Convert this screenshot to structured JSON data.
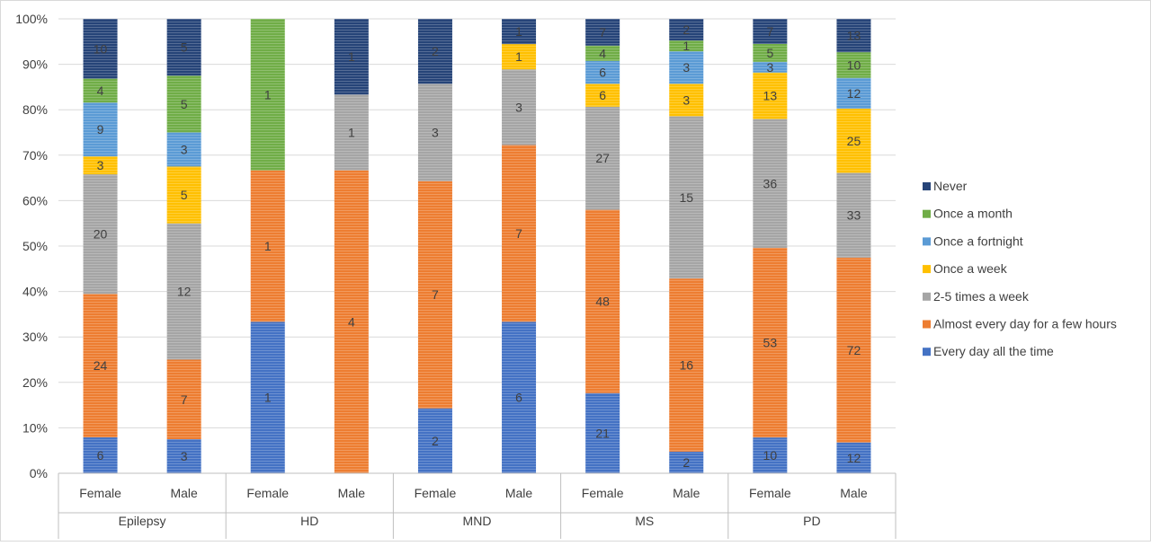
{
  "chart_data": {
    "type": "bar",
    "stacked": "percent",
    "title": "",
    "xlabel": "",
    "ylabel": "",
    "ylim": [
      0,
      100
    ],
    "y_ticks": [
      "0%",
      "10%",
      "20%",
      "30%",
      "40%",
      "50%",
      "60%",
      "70%",
      "80%",
      "90%",
      "100%"
    ],
    "grid": true,
    "legend_position": "right",
    "groups": [
      {
        "name": "Epilepsy",
        "categories": [
          "Female",
          "Male"
        ]
      },
      {
        "name": "HD",
        "categories": [
          "Female",
          "Male"
        ]
      },
      {
        "name": "MND",
        "categories": [
          "Female",
          "Male"
        ]
      },
      {
        "name": "MS",
        "categories": [
          "Female",
          "Male"
        ]
      },
      {
        "name": "PD",
        "categories": [
          "Female",
          "Male"
        ]
      }
    ],
    "series": [
      {
        "name": "Every day  all the time",
        "color": "#4472C4",
        "values": [
          6,
          3,
          1,
          0,
          2,
          6,
          21,
          2,
          10,
          12
        ]
      },
      {
        "name": "Almost every day for a few hours",
        "color": "#ED7D31",
        "values": [
          24,
          7,
          1,
          4,
          7,
          7,
          48,
          16,
          53,
          72
        ]
      },
      {
        "name": "2-5 times a week",
        "color": "#A5A5A5",
        "values": [
          20,
          12,
          0,
          1,
          3,
          3,
          27,
          15,
          36,
          33
        ]
      },
      {
        "name": "Once a week",
        "color": "#FFC000",
        "values": [
          3,
          5,
          0,
          0,
          0,
          1,
          6,
          3,
          13,
          25
        ]
      },
      {
        "name": "Once a fortnight",
        "color": "#5B9BD5",
        "values": [
          9,
          3,
          0,
          0,
          0,
          0,
          6,
          3,
          3,
          12
        ]
      },
      {
        "name": "Once a month",
        "color": "#70AD47",
        "values": [
          4,
          5,
          1,
          0,
          0,
          0,
          4,
          1,
          5,
          10
        ]
      },
      {
        "name": "Never",
        "color": "#264478",
        "values": [
          10,
          5,
          0,
          1,
          2,
          1,
          7,
          2,
          7,
          13
        ]
      }
    ],
    "legend_order": [
      "Never",
      "Once a month",
      "Once a fortnight",
      "Once a week",
      "2-5 times a week",
      "Almost every day for a few hours",
      "Every day  all the time"
    ]
  }
}
